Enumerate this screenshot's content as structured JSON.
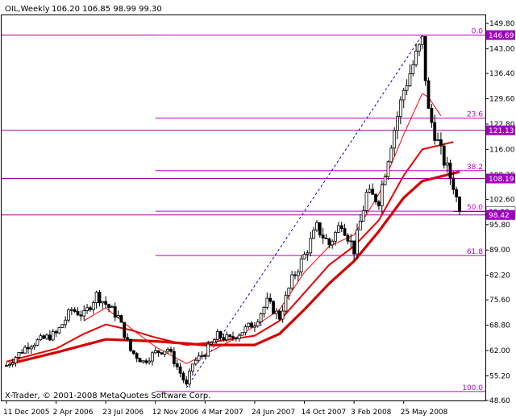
{
  "header": {
    "symbol": "OIL,Weekly",
    "ohlc": "106.20 106.85 98.99 99.30"
  },
  "footer": {
    "copyright": "X-Trader, © 2001-2008 MetaQuotes Software Corp."
  },
  "colors": {
    "background": "#ffffff",
    "candle": "#000000",
    "ma_thin": "#ff0000",
    "ma_mid": "#e60000",
    "ma_thick": "#d40000",
    "fib": "#c000c0",
    "level_line": "#a000a0",
    "badge_bg": "#a000c0",
    "badge_text": "#ffffff",
    "trend_line": "#0000cc"
  },
  "chart_data": {
    "type": "candlestick",
    "title": "OIL,Weekly",
    "y_range": [
      48.6,
      152.0
    ],
    "y_ticks": [
      "149.80",
      "143.00",
      "136.40",
      "129.60",
      "122.80",
      "116.00",
      "109.20",
      "102.60",
      "95.80",
      "89.00",
      "82.20",
      "75.60",
      "68.80",
      "62.00",
      "55.20",
      "48.60"
    ],
    "x_ticks": [
      "11 Dec 2005",
      "2 Apr 2006",
      "23 Jul 2006",
      "12 Nov 2006",
      "4 Mar 2007",
      "24 Jun 2007",
      "14 Oct 2007",
      "3 Feb 2008",
      "25 May 2008"
    ],
    "x_start": "11 Dec 2005",
    "close_path": [
      [
        "11 Dec 2005",
        58.0
      ],
      [
        "29 Jan 2006",
        63.5
      ],
      [
        "2 Apr 2006",
        66.5
      ],
      [
        "7 May 2006",
        73.0
      ],
      [
        "4 Jun 2006",
        71.5
      ],
      [
        "2 Jul 2006",
        77.0
      ],
      [
        "23 Jul 2006",
        74.5
      ],
      [
        "20 Aug 2006",
        71.0
      ],
      [
        "17 Sep 2006",
        62.0
      ],
      [
        "15 Oct 2006",
        59.0
      ],
      [
        "12 Nov 2006",
        61.5
      ],
      [
        "10 Dec 2006",
        62.5
      ],
      [
        "7 Jan 2007",
        56.0
      ],
      [
        "21 Jan 2007",
        52.5
      ],
      [
        "4 Feb 2007",
        58.5
      ],
      [
        "4 Mar 2007",
        61.5
      ],
      [
        "1 Apr 2007",
        66.0
      ],
      [
        "29 Apr 2007",
        65.0
      ],
      [
        "24 Jun 2007",
        69.5
      ],
      [
        "22 Jul 2007",
        75.0
      ],
      [
        "19 Aug 2007",
        71.0
      ],
      [
        "16 Sep 2007",
        81.0
      ],
      [
        "14 Oct 2007",
        87.5
      ],
      [
        "11 Nov 2007",
        95.0
      ],
      [
        "9 Dec 2007",
        90.5
      ],
      [
        "6 Jan 2008",
        96.5
      ],
      [
        "3 Feb 2008",
        89.0
      ],
      [
        "2 Mar 2008",
        104.0
      ],
      [
        "30 Mar 2008",
        102.5
      ],
      [
        "27 Apr 2008",
        118.0
      ],
      [
        "25 May 2008",
        132.0
      ],
      [
        "22 Jun 2008",
        141.0
      ],
      [
        "6 Jul 2008",
        145.0
      ],
      [
        "20 Jul 2008",
        126.0
      ],
      [
        "17 Aug 2008",
        115.0
      ],
      [
        "14 Sep 2008",
        106.5
      ],
      [
        "28 Sep 2008",
        99.3
      ]
    ],
    "ma_thin": [
      [
        "4 Jun 2006",
        70.0
      ],
      [
        "23 Jul 2006",
        73.5
      ],
      [
        "17 Sep 2006",
        68.0
      ],
      [
        "12 Nov 2006",
        63.0
      ],
      [
        "21 Jan 2007",
        58.5
      ],
      [
        "4 Mar 2007",
        61.0
      ],
      [
        "29 Apr 2007",
        64.5
      ],
      [
        "24 Jun 2007",
        68.5
      ],
      [
        "19 Aug 2007",
        73.0
      ],
      [
        "14 Oct 2007",
        83.0
      ],
      [
        "9 Dec 2007",
        90.0
      ],
      [
        "3 Feb 2008",
        93.0
      ],
      [
        "30 Mar 2008",
        104.0
      ],
      [
        "25 May 2008",
        120.0
      ],
      [
        "6 Jul 2008",
        131.0
      ],
      [
        "20 Jul 2008",
        130.0
      ],
      [
        "17 Aug 2008",
        125.0
      ]
    ],
    "ma_mid": [
      [
        "11 Dec 2005",
        59.0
      ],
      [
        "2 Apr 2006",
        62.5
      ],
      [
        "4 Jun 2006",
        66.5
      ],
      [
        "23 Jul 2006",
        69.0
      ],
      [
        "17 Sep 2006",
        67.5
      ],
      [
        "12 Nov 2006",
        65.5
      ],
      [
        "21 Jan 2007",
        63.5
      ],
      [
        "4 Mar 2007",
        64.0
      ],
      [
        "24 Jun 2007",
        66.0
      ],
      [
        "19 Aug 2007",
        70.0
      ],
      [
        "14 Oct 2007",
        77.5
      ],
      [
        "9 Dec 2007",
        85.0
      ],
      [
        "3 Feb 2008",
        90.0
      ],
      [
        "30 Mar 2008",
        97.0
      ],
      [
        "25 May 2008",
        109.0
      ],
      [
        "6 Jul 2008",
        116.0
      ],
      [
        "14 Sep 2008",
        118.0
      ]
    ],
    "ma_thick": [
      [
        "20 Dec 2005",
        58.5
      ],
      [
        "2 Apr 2006",
        61.5
      ],
      [
        "23 Jul 2006",
        65.0
      ],
      [
        "12 Nov 2006",
        64.5
      ],
      [
        "4 Mar 2007",
        63.5
      ],
      [
        "24 Jun 2007",
        63.5
      ],
      [
        "19 Aug 2007",
        66.5
      ],
      [
        "14 Oct 2007",
        73.0
      ],
      [
        "9 Dec 2007",
        80.0
      ],
      [
        "3 Feb 2008",
        86.0
      ],
      [
        "30 Mar 2008",
        94.0
      ],
      [
        "25 May 2008",
        103.0
      ],
      [
        "6 Jul 2008",
        107.5
      ],
      [
        "28 Sep 2008",
        110.0
      ]
    ],
    "trend_line": [
      [
        "21 Jan 2007",
        52.0
      ],
      [
        "6 Jul 2008",
        146.7
      ]
    ],
    "fib_levels": [
      {
        "label": "0.0",
        "value": 146.69
      },
      {
        "label": "23.6",
        "value": 124.4
      },
      {
        "label": "38.2",
        "value": 110.3
      },
      {
        "label": "50.0",
        "value": 99.4
      },
      {
        "label": "61.8",
        "value": 87.5
      },
      {
        "label": "100.0",
        "value": 51.0
      }
    ],
    "price_levels": [
      {
        "label": "146.69",
        "value": 146.69
      },
      {
        "label": "121.13",
        "value": 121.13
      },
      {
        "label": "108.19",
        "value": 108.19
      },
      {
        "label": "98.42",
        "value": 98.42
      }
    ],
    "current_price": {
      "label": "99.30",
      "value": 99.3
    }
  }
}
